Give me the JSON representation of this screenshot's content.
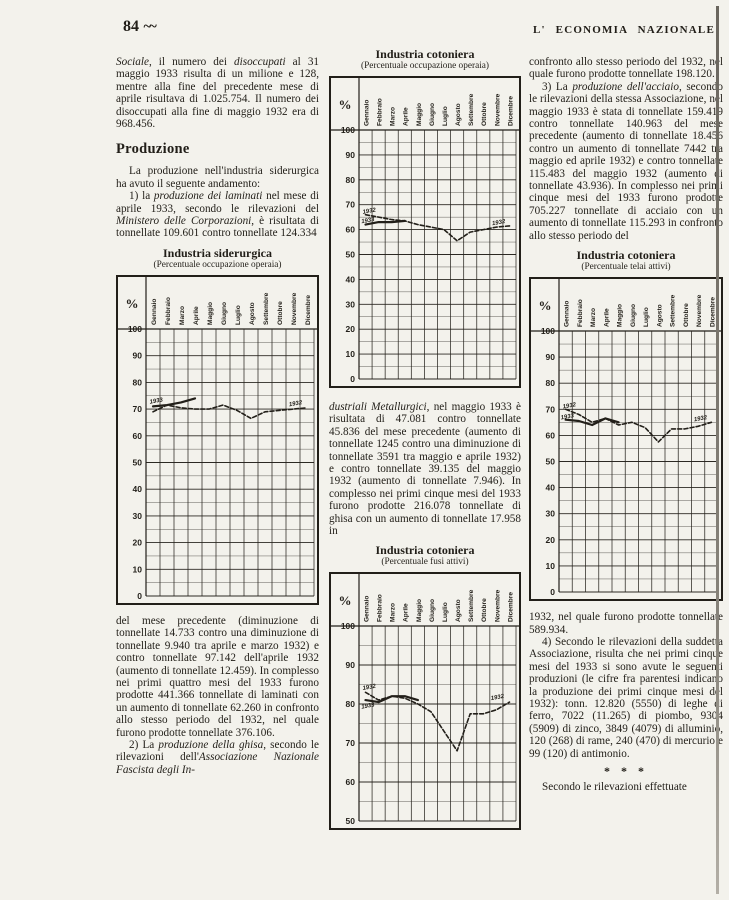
{
  "header": {
    "page_number": "84",
    "ornament": "~~",
    "journal": "L' ECONOMIA NAZIONALE"
  },
  "columns": {
    "left": {
      "para1": [
        {
          "t": "Sociale",
          "i": true
        },
        {
          "t": ", il numero dei "
        },
        {
          "t": "disoccupati",
          "i": true
        },
        {
          "t": " al 31 maggio 1933 risulta di un milione e 128, mentre alla fine del precedente mese di aprile risultava di 1.025.754. Il numero dei disoccupati alla fine di maggio 1932 era di 968.456."
        }
      ],
      "heading": "Produzione",
      "para2": [
        {
          "t": "La produzione nell'industria siderurgica ha avuto il seguente andamento:"
        }
      ],
      "para3": [
        {
          "t": "1) la "
        },
        {
          "t": "produzione dei laminati",
          "i": true
        },
        {
          "t": " nel mese di aprile 1933, secondo le rilevazioni del "
        },
        {
          "t": "Ministero delle Corporazioni",
          "i": true
        },
        {
          "t": ", è risultata di tonnellate 109.601 contro tonnellate 124.334"
        }
      ],
      "para4": [
        {
          "t": "del mese precedente (diminuzione di tonnellate 14.733 contro una diminuzione di tonnellate 9.940 tra aprile e marzo 1932) e contro tonnellate 97.142 dell'aprile 1932 (aumento di tonnellate 12.459). In complesso nei primi quattro mesi del 1933 furono prodotte 441.366 tonnellate di laminati con un aumento di tonnellate 62.260 in confronto allo stesso periodo del 1932, nel quale furono prodotte tonnellate 376.106."
        }
      ],
      "para5": [
        {
          "t": "2) La "
        },
        {
          "t": "produzione della ghisa",
          "i": true
        },
        {
          "t": ", secondo le rilevazioni dell'"
        },
        {
          "t": "Associazione Nazionale Fascista degli In-",
          "i": true
        }
      ]
    },
    "middle": {
      "para1": [
        {
          "t": "dustriali Metallurgici",
          "i": true
        },
        {
          "t": ", nel maggio 1933 è risultata di 47.081 contro tonnellate 45.836 del mese precedente (aumento di tonnellate 1245 contro una diminuzione di tonnellate 3591 tra maggio e aprile 1932) e contro tonnellate 39.135 del maggio 1932 (aumento di tonnellate 7.946). In complesso nei primi cinque mesi del 1933 furono prodotte 216.078 tonnellate di ghisa con un aumento di tonnellate 17.958 in"
        }
      ]
    },
    "right": {
      "para1": [
        {
          "t": "confronto allo stesso periodo del 1932, nel quale furono prodotte tonnellate 198.120."
        }
      ],
      "para2": [
        {
          "t": "3) La "
        },
        {
          "t": "produzione dell'acciaio",
          "i": true
        },
        {
          "t": ", secondo le rilevazioni della stessa Associazione, nel maggio 1933 è stata di tonnellate 159.419 contro tonnellate 140.963 del mese precedente (aumento di tonnellate 18.456 contro un aumento di tonnellate 7442 tra maggio ed aprile 1932) e contro tonnellate 115.483 del maggio 1932 (aumento di tonnellate 43.936). In complesso nei primi cinque mesi del 1933 furono prodotte 705.227 tonnellate di acciaio con un aumento di tonnellate 115.293 in confronto allo stesso periodo del"
        }
      ],
      "para3": [
        {
          "t": "1932, nel quale furono prodotte tonnellate 589.934."
        }
      ],
      "para4": [
        {
          "t": "4) Secondo le rilevazioni della suddetta Associazione, risulta che nei primi cinque mesi del 1933 si sono avute le seguenti produzioni (le cifre fra parentesi indicano la produzione dei primi cinque mesi del 1932): tonn. 12.820 (5550) di leghe di ferro, 7022 (11.265) di piombo, 9304 (5909) di zinco, 3849 (4079) di alluminio, 120 (268) di rame, 240 (470) di mercurio e 99 (120) di antimonio."
        }
      ],
      "separator": "* * *",
      "para5": [
        {
          "t": "Secondo le rilevazioni effettuate"
        }
      ]
    }
  },
  "chart_data": [
    {
      "type": "line",
      "title": "Industria siderurgica",
      "subtitle": "(Percentuale occupazione operaia)",
      "ylabel": "%",
      "ylim": [
        0,
        100
      ],
      "ytick_step": 10,
      "grid": true,
      "categories": [
        "Gennaio",
        "Febbraio",
        "Marzo",
        "Aprile",
        "Maggio",
        "Giugno",
        "Luglio",
        "Agosto",
        "Settembre",
        "Ottobre",
        "Novembre",
        "Dicembre"
      ],
      "series": [
        {
          "name": "1932",
          "dash": true,
          "values": [
            69,
            71.5,
            70.5,
            70,
            70,
            71.5,
            69.5,
            66.5,
            69,
            69.5,
            70,
            70.5
          ]
        },
        {
          "name": "1933",
          "dash": false,
          "values": [
            71,
            71.5,
            72.5,
            74
          ]
        }
      ],
      "annotations": [
        {
          "text": "1933",
          "month": 0.25,
          "value": 73.2
        },
        {
          "text": "1932",
          "month": 10.2,
          "value": 72.2
        }
      ]
    },
    {
      "type": "line",
      "title": "Industria cotoniera",
      "subtitle": "(Percentuale occupazione operaia)",
      "ylabel": "%",
      "ylim": [
        0,
        100
      ],
      "ytick_step": 10,
      "grid": true,
      "categories": [
        "Gennaio",
        "Febbraio",
        "Marzo",
        "Aprile",
        "Maggio",
        "Giugno",
        "Luglio",
        "Agosto",
        "Settembre",
        "Ottobre",
        "Novembre",
        "Dicembre"
      ],
      "series": [
        {
          "name": "1932",
          "dash": true,
          "values": [
            66,
            65,
            64,
            63.5,
            62,
            61,
            60,
            55.5,
            59,
            60,
            61,
            61.5
          ]
        },
        {
          "name": "1933",
          "dash": false,
          "values": [
            62,
            63,
            63,
            63.5
          ]
        }
      ],
      "annotations": [
        {
          "text": "1932",
          "month": 0.3,
          "value": 67.6
        },
        {
          "text": "1933",
          "month": 0.2,
          "value": 63.8
        },
        {
          "text": "1932",
          "month": 10.2,
          "value": 63
        }
      ]
    },
    {
      "type": "line",
      "title": "Industria cotoniera",
      "subtitle": "(Percentuale telai attivi)",
      "ylabel": "%",
      "ylim": [
        0,
        100
      ],
      "ytick_step": 10,
      "grid": true,
      "categories": [
        "Gennaio",
        "Febbraio",
        "Marzo",
        "Aprile",
        "Maggio",
        "Giugno",
        "Luglio",
        "Agosto",
        "Settembre",
        "Ottobre",
        "Novembre",
        "Dicembre"
      ],
      "series": [
        {
          "name": "1932",
          "dash": true,
          "values": [
            70,
            68,
            65,
            66.5,
            64,
            65,
            63,
            57.5,
            62.5,
            62.5,
            63.5,
            65
          ]
        },
        {
          "name": "1933",
          "dash": false,
          "values": [
            66,
            65.5,
            64,
            66.5,
            65
          ]
        }
      ],
      "annotations": [
        {
          "text": "1932",
          "month": 0.3,
          "value": 71.5
        },
        {
          "text": "1933",
          "month": 0.15,
          "value": 67.3
        },
        {
          "text": "1932",
          "month": 10.2,
          "value": 66.6
        }
      ]
    },
    {
      "type": "line",
      "title": "Industria cotoniera",
      "subtitle": "(Percentuale fusi attivi)",
      "ylabel": "%",
      "ylim": [
        50,
        100
      ],
      "ytick_step": 10,
      "grid": true,
      "categories": [
        "Gennaio",
        "Febbraio",
        "Marzo",
        "Aprile",
        "Maggio",
        "Giugno",
        "Luglio",
        "Agosto",
        "Settembre",
        "Ottobre",
        "Novembre",
        "Dicembre"
      ],
      "series": [
        {
          "name": "1932",
          "dash": true,
          "values": [
            83,
            81,
            82,
            81.5,
            80,
            78,
            73,
            68,
            77.5,
            77.5,
            78.5,
            80.5
          ]
        },
        {
          "name": "1933",
          "dash": false,
          "values": [
            81,
            80.5,
            82,
            82,
            81
          ]
        }
      ],
      "annotations": [
        {
          "text": "1932",
          "month": 0.3,
          "value": 84.4
        },
        {
          "text": "1933",
          "month": 0.2,
          "value": 79.6
        },
        {
          "text": "1932",
          "month": 10.1,
          "value": 81.8
        }
      ]
    }
  ]
}
